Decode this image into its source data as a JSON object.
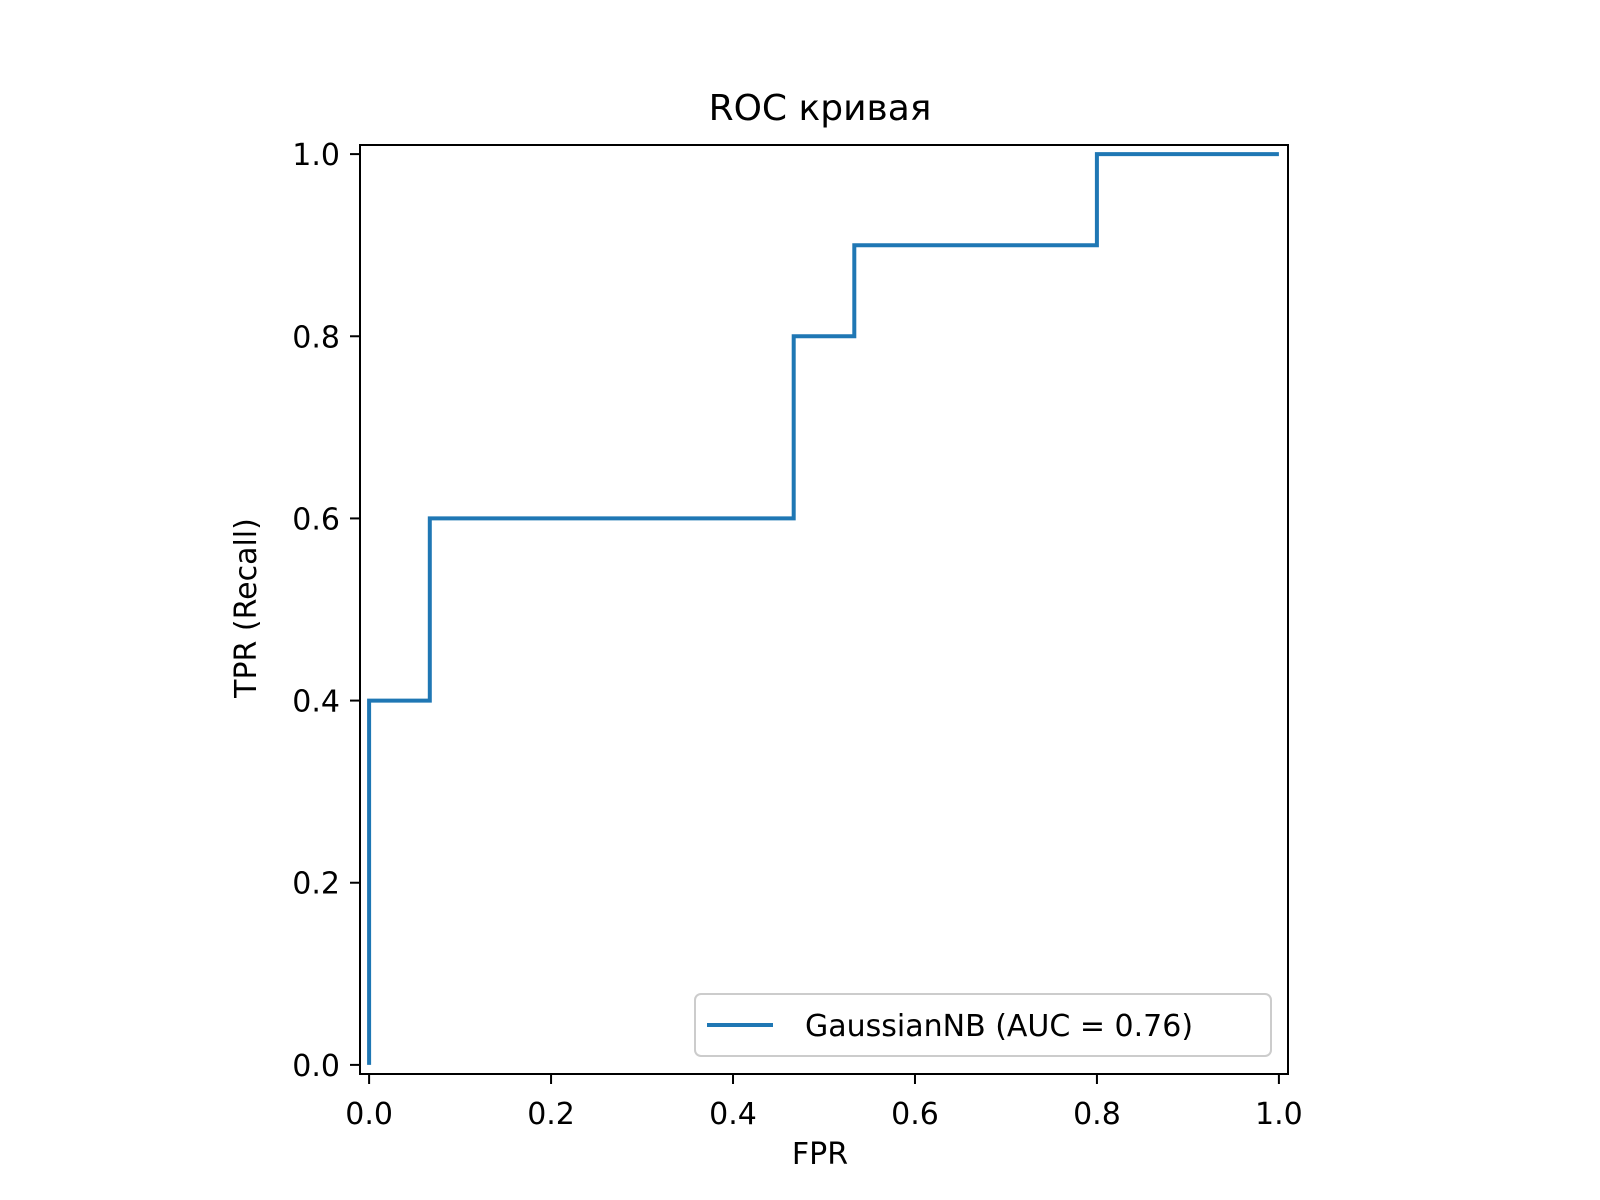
{
  "chart_data": {
    "type": "line",
    "title": "ROC кривая",
    "xlabel": "FPR",
    "ylabel": "TPR (Recall)",
    "xlim": [
      -0.01,
      1.01
    ],
    "ylim": [
      -0.01,
      1.01
    ],
    "xticks": [
      "0.0",
      "0.2",
      "0.4",
      "0.6",
      "0.8",
      "1.0"
    ],
    "yticks": [
      "0.0",
      "0.2",
      "0.4",
      "0.6",
      "0.8",
      "1.0"
    ],
    "grid": false,
    "legend_position": "lower-right",
    "series": [
      {
        "name": "GaussianNB (AUC = 0.76)",
        "color": "#1f77b4",
        "drawstyle": "steps-post",
        "x": [
          0.0,
          0.0,
          0.0667,
          0.0667,
          0.4667,
          0.4667,
          0.5333,
          0.5333,
          0.8,
          0.8,
          1.0
        ],
        "y": [
          0.0,
          0.4,
          0.4,
          0.6,
          0.6,
          0.8,
          0.8,
          0.9,
          0.9,
          1.0,
          1.0
        ]
      }
    ]
  }
}
